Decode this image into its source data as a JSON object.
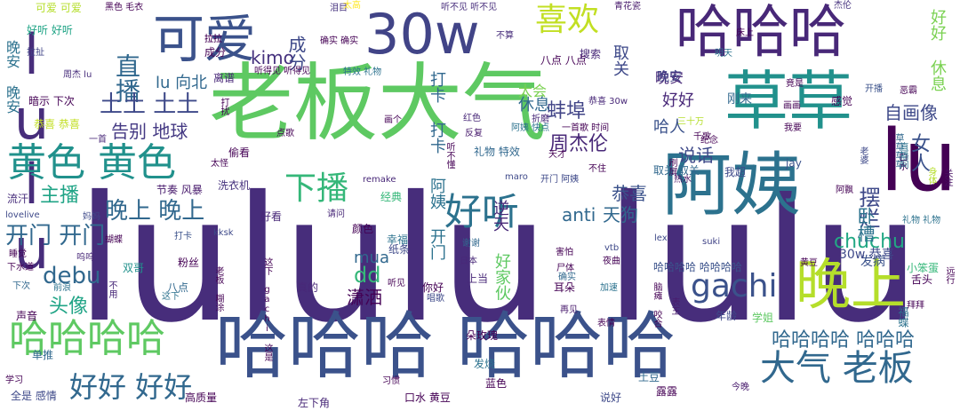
{
  "title": "",
  "words": [
    {
      "text": "lululu lulu",
      "color": "#472d7b"
    },
    {
      "text": "老板大气",
      "color": "#5ec962"
    },
    {
      "text": "哈哈哈 哈哈哈",
      "color": "#3b528b"
    },
    {
      "text": "草草",
      "color": "#21918c"
    },
    {
      "text": "30w",
      "color": "#414487"
    },
    {
      "text": "阿姨",
      "color": "#2c728e"
    },
    {
      "text": "哈哈哈",
      "color": "#482878"
    },
    {
      "text": "可爱",
      "color": "#3b528b"
    },
    {
      "text": "lulu",
      "color": "#472d7b"
    },
    {
      "text": "lu",
      "color": "#440154"
    },
    {
      "text": "晚上",
      "color": "#b5de2b"
    },
    {
      "text": "哈哈哈哈",
      "color": "#5ec962"
    },
    {
      "text": "黄色 黄色",
      "color": "#21918c"
    },
    {
      "text": "大气 老板",
      "color": "#31688e"
    },
    {
      "text": "喜欢",
      "color": "#c2df23"
    },
    {
      "text": "好听",
      "color": "#2c728e"
    },
    {
      "text": "gachi",
      "color": "#3b528b"
    },
    {
      "text": "下播",
      "color": "#35b779"
    },
    {
      "text": "好好 好好",
      "color": "#31688e"
    },
    {
      "text": "直播",
      "color": "#31688e"
    },
    {
      "text": "土土 土土",
      "color": "#3e4989"
    },
    {
      "text": "晚上 晚上",
      "color": "#31688e"
    },
    {
      "text": "开门 开门",
      "color": "#31688e"
    },
    {
      "text": "主播",
      "color": "#20a486"
    },
    {
      "text": "debu",
      "color": "#31688e"
    },
    {
      "text": "头像",
      "color": "#20a486"
    },
    {
      "text": "哈哈哈哈 哈哈哈",
      "color": "#31688e"
    },
    {
      "text": "chuchu",
      "color": "#22a884"
    },
    {
      "text": "摆烂",
      "color": "#3e4989"
    },
    {
      "text": "女人",
      "color": "#3b528b"
    },
    {
      "text": "蚌埠",
      "color": "#414487"
    },
    {
      "text": "周杰伦",
      "color": "#482878"
    },
    {
      "text": "恭喜",
      "color": "#3b528b"
    },
    {
      "text": "anti",
      "color": "#31688e"
    },
    {
      "text": "天狗",
      "color": "#31688e"
    },
    {
      "text": "mua",
      "color": "#31688e"
    },
    {
      "text": "dd",
      "color": "#35b779"
    },
    {
      "text": "潇洒",
      "color": "#440154"
    },
    {
      "text": "kimo",
      "color": "#46327e"
    },
    {
      "text": "成分",
      "color": "#3e4989"
    },
    {
      "text": "休息",
      "color": "#31688e"
    },
    {
      "text": "太会",
      "color": "#7ad151"
    },
    {
      "text": "晚安",
      "color": "#482878"
    },
    {
      "text": "好好",
      "color": "#482878"
    },
    {
      "text": "哈人",
      "color": "#3b528b"
    },
    {
      "text": "说话",
      "color": "#3e4989"
    },
    {
      "text": "自画像",
      "color": "#3e4989"
    },
    {
      "text": "告别 地球",
      "color": "#443983"
    },
    {
      "text": "lu 向北",
      "color": "#31688e"
    },
    {
      "text": "卧槽",
      "color": "#2c728e"
    },
    {
      "text": "发病",
      "color": "#3b528b"
    },
    {
      "text": "30w 恭喜",
      "color": "#3e4989"
    },
    {
      "text": "哈哈哈哈 哈哈哈哈",
      "color": "#3b528b"
    },
    {
      "text": "晚安 晚安",
      "color": "#2c728e"
    },
    {
      "text": "好好 休息",
      "color": "#7ad151"
    },
    {
      "text": "取关",
      "color": "#3e4989"
    },
    {
      "text": "打卡 打卡",
      "color": "#31688e"
    },
    {
      "text": "阿姨 开门",
      "color": "#2c728e"
    },
    {
      "text": "逆天",
      "color": "#482878"
    },
    {
      "text": "好家伙",
      "color": "#5ec962"
    },
    {
      "text": "晚安",
      "color": "#414487"
    },
    {
      "text": "节奏 风暴",
      "color": "#481b6d"
    },
    {
      "text": "洗衣机",
      "color": "#46327e"
    },
    {
      "text": "流汗",
      "color": "#472d7b"
    },
    {
      "text": "黑色 毛衣",
      "color": "#440154"
    },
    {
      "text": "可爱 可爱",
      "color": "#b5de2b"
    },
    {
      "text": "好听 好听",
      "color": "#20a486"
    },
    {
      "text": "拉扯",
      "color": "#414487"
    },
    {
      "text": "周杰 lu",
      "color": "#472d7b"
    },
    {
      "text": "暗示 下次",
      "color": "#440154"
    },
    {
      "text": "恭喜 恭喜",
      "color": "#c2df23"
    },
    {
      "text": "成分",
      "color": "#440154"
    },
    {
      "text": "特效 礼物",
      "color": "#2c728e"
    },
    {
      "text": "礼物 特效",
      "color": "#31688e"
    },
    {
      "text": "八点 八点",
      "color": "#440154"
    },
    {
      "text": "搜索",
      "color": "#482878"
    },
    {
      "text": "恭喜 30w",
      "color": "#482878"
    },
    {
      "text": "刚来",
      "color": "#31688e"
    },
    {
      "text": "竟是",
      "color": "#440154"
    },
    {
      "text": "感觉",
      "color": "#440154"
    },
    {
      "text": "开播",
      "color": "#3b528b"
    },
    {
      "text": "离谱",
      "color": "#482878"
    },
    {
      "text": "听不见 听不见",
      "color": "#472d7b"
    },
    {
      "text": "不算",
      "color": "#472d7b"
    },
    {
      "text": "确实 确实",
      "color": "#440154"
    },
    {
      "text": "泪目",
      "color": "#46327e"
    },
    {
      "text": "拉拉",
      "color": "#440154"
    },
    {
      "text": "青花瓷",
      "color": "#481b6d"
    },
    {
      "text": "床上",
      "color": "#440154"
    },
    {
      "text": "杰伦",
      "color": "#46327e"
    },
    {
      "text": "明天",
      "color": "#2c728e"
    },
    {
      "text": "折磨",
      "color": "#482878"
    },
    {
      "text": "画个",
      "color": "#440154"
    },
    {
      "text": "红色",
      "color": "#482878"
    },
    {
      "text": "反复",
      "color": "#481b6d"
    },
    {
      "text": "听不懂",
      "color": "#440154"
    },
    {
      "text": "阿姨 快点",
      "color": "#2c728e"
    },
    {
      "text": "一首歌 时间",
      "color": "#440154"
    },
    {
      "text": "三十万",
      "color": "#b5de2b"
    },
    {
      "text": "纪念",
      "color": "#440154"
    },
    {
      "text": "取关 取关",
      "color": "#31688e"
    },
    {
      "text": "热水",
      "color": "#471063"
    },
    {
      "text": "我超",
      "color": "#3e4989"
    },
    {
      "text": "jay",
      "color": "#3b528b"
    },
    {
      "text": "老婆",
      "color": "#3e4989"
    },
    {
      "text": "草草草草",
      "color": "#31688e"
    },
    {
      "text": "口水",
      "color": "#440154"
    },
    {
      "text": "身体",
      "color": "#b5de2b"
    },
    {
      "text": "关注",
      "color": "#471063"
    },
    {
      "text": "礼物 礼物",
      "color": "#2c728e"
    },
    {
      "text": "lovelive",
      "color": "#3e4989"
    },
    {
      "text": "妈妈",
      "color": "#3e4989"
    },
    {
      "text": "蝴蝶",
      "color": "#440154"
    },
    {
      "text": "打卡",
      "color": "#3b528b"
    },
    {
      "text": "kksk",
      "color": "#3e4989"
    },
    {
      "text": "suki",
      "color": "#414487"
    },
    {
      "text": "lex",
      "color": "#3e4989"
    },
    {
      "text": "睡觉",
      "color": "#440154"
    },
    {
      "text": "下水道",
      "color": "#440154"
    },
    {
      "text": "下次",
      "color": "#31688e"
    },
    {
      "text": "呜呜",
      "color": "#482878"
    },
    {
      "text": "双哥",
      "color": "#21918c"
    },
    {
      "text": "粉丝",
      "color": "#440154"
    },
    {
      "text": "八点",
      "color": "#31688e"
    },
    {
      "text": "老板 糊涂",
      "color": "#440154"
    },
    {
      "text": "这下 gachi 这是",
      "color": "#440154"
    },
    {
      "text": "真的",
      "color": "#482878"
    },
    {
      "text": "你好",
      "color": "#440154"
    },
    {
      "text": "上当",
      "color": "#482878"
    },
    {
      "text": "日本",
      "color": "#482878"
    },
    {
      "text": "尸体",
      "color": "#440154"
    },
    {
      "text": "夜曲",
      "color": "#440154"
    },
    {
      "text": "耳朵",
      "color": "#440154"
    },
    {
      "text": "加速",
      "color": "#2c728e"
    },
    {
      "text": "确实",
      "color": "#31688e"
    },
    {
      "text": "表王",
      "color": "#481b6d"
    },
    {
      "text": "脑瘫 咬合",
      "color": "#440154"
    },
    {
      "text": "年龄",
      "color": "#3e4989"
    },
    {
      "text": "学姐",
      "color": "#5ec962"
    },
    {
      "text": "小笨蛋",
      "color": "#35b779"
    },
    {
      "text": "舌头",
      "color": "#440154"
    },
    {
      "text": "福蝶",
      "color": "#2c728e"
    },
    {
      "text": "拜拜",
      "color": "#440154"
    },
    {
      "text": "远行",
      "color": "#440154"
    },
    {
      "text": "黄豆",
      "color": "#440154"
    },
    {
      "text": "vtb",
      "color": "#3e4989"
    },
    {
      "text": "害怕",
      "color": "#440154"
    },
    {
      "text": "谢谢",
      "color": "#31688e"
    },
    {
      "text": "幸福",
      "color": "#2c728e"
    },
    {
      "text": "纸条",
      "color": "#3e4989"
    },
    {
      "text": "颜色",
      "color": "#440154"
    },
    {
      "text": "请问",
      "color": "#482878"
    },
    {
      "text": "好看",
      "color": "#482878"
    },
    {
      "text": "经典",
      "color": "#35b779"
    },
    {
      "text": "remake",
      "color": "#482878"
    },
    {
      "text": "maro",
      "color": "#3e4989"
    },
    {
      "text": "太怪",
      "color": "#440154"
    },
    {
      "text": "点歌",
      "color": "#440154"
    },
    {
      "text": "偷看",
      "color": "#440154"
    },
    {
      "text": "开门 阿姨",
      "color": "#3e4989"
    },
    {
      "text": "不住",
      "color": "#440154"
    },
    {
      "text": "一首",
      "color": "#482878"
    },
    {
      "text": "学习",
      "color": "#440154"
    },
    {
      "text": "太高",
      "color": "#fde725"
    },
    {
      "text": "打扰",
      "color": "#440154"
    },
    {
      "text": "拉拉",
      "color": "#440154"
    },
    {
      "text": "听得见 听得见",
      "color": "#440154"
    },
    {
      "text": "声音",
      "color": "#440154"
    },
    {
      "text": "单推",
      "color": "#31688e"
    },
    {
      "text": "全是 感情",
      "color": "#3e4989"
    },
    {
      "text": "高质量",
      "color": "#440154"
    },
    {
      "text": "左下角",
      "color": "#482878"
    },
    {
      "text": "口水 黄豆",
      "color": "#440154"
    },
    {
      "text": "蓝色",
      "color": "#440154"
    },
    {
      "text": "发烧",
      "color": "#2c728e"
    },
    {
      "text": "朵玫瑰",
      "color": "#440154"
    },
    {
      "text": "习惯",
      "color": "#440154"
    },
    {
      "text": "说好",
      "color": "#3e4989"
    },
    {
      "text": "土豆",
      "color": "#31688e"
    },
    {
      "text": "露露",
      "color": "#440154"
    },
    {
      "text": "今晚",
      "color": "#481b6d"
    },
    {
      "text": "唱歌",
      "color": "#3e4989"
    },
    {
      "text": "再见",
      "color": "#481b6d"
    },
    {
      "text": "表情",
      "color": "#440154"
    },
    {
      "text": "前浪",
      "color": "#2c728e"
    },
    {
      "text": "不用",
      "color": "#482878"
    },
    {
      "text": "这下",
      "color": "#2c728e"
    },
    {
      "text": "听见",
      "color": "#440154"
    },
    {
      "text": "画画",
      "color": "#440154"
    },
    {
      "text": "我要",
      "color": "#440154"
    },
    {
      "text": "恶霸",
      "color": "#440154"
    },
    {
      "text": "天才",
      "color": "#440154"
    },
    {
      "text": "直播间",
      "color": "#2c728e"
    },
    {
      "text": "阿飘",
      "color": "#440154"
    },
    {
      "text": "千歌",
      "color": "#440154"
    },
    {
      "text": "刷屏",
      "color": "#440154"
    }
  ]
}
